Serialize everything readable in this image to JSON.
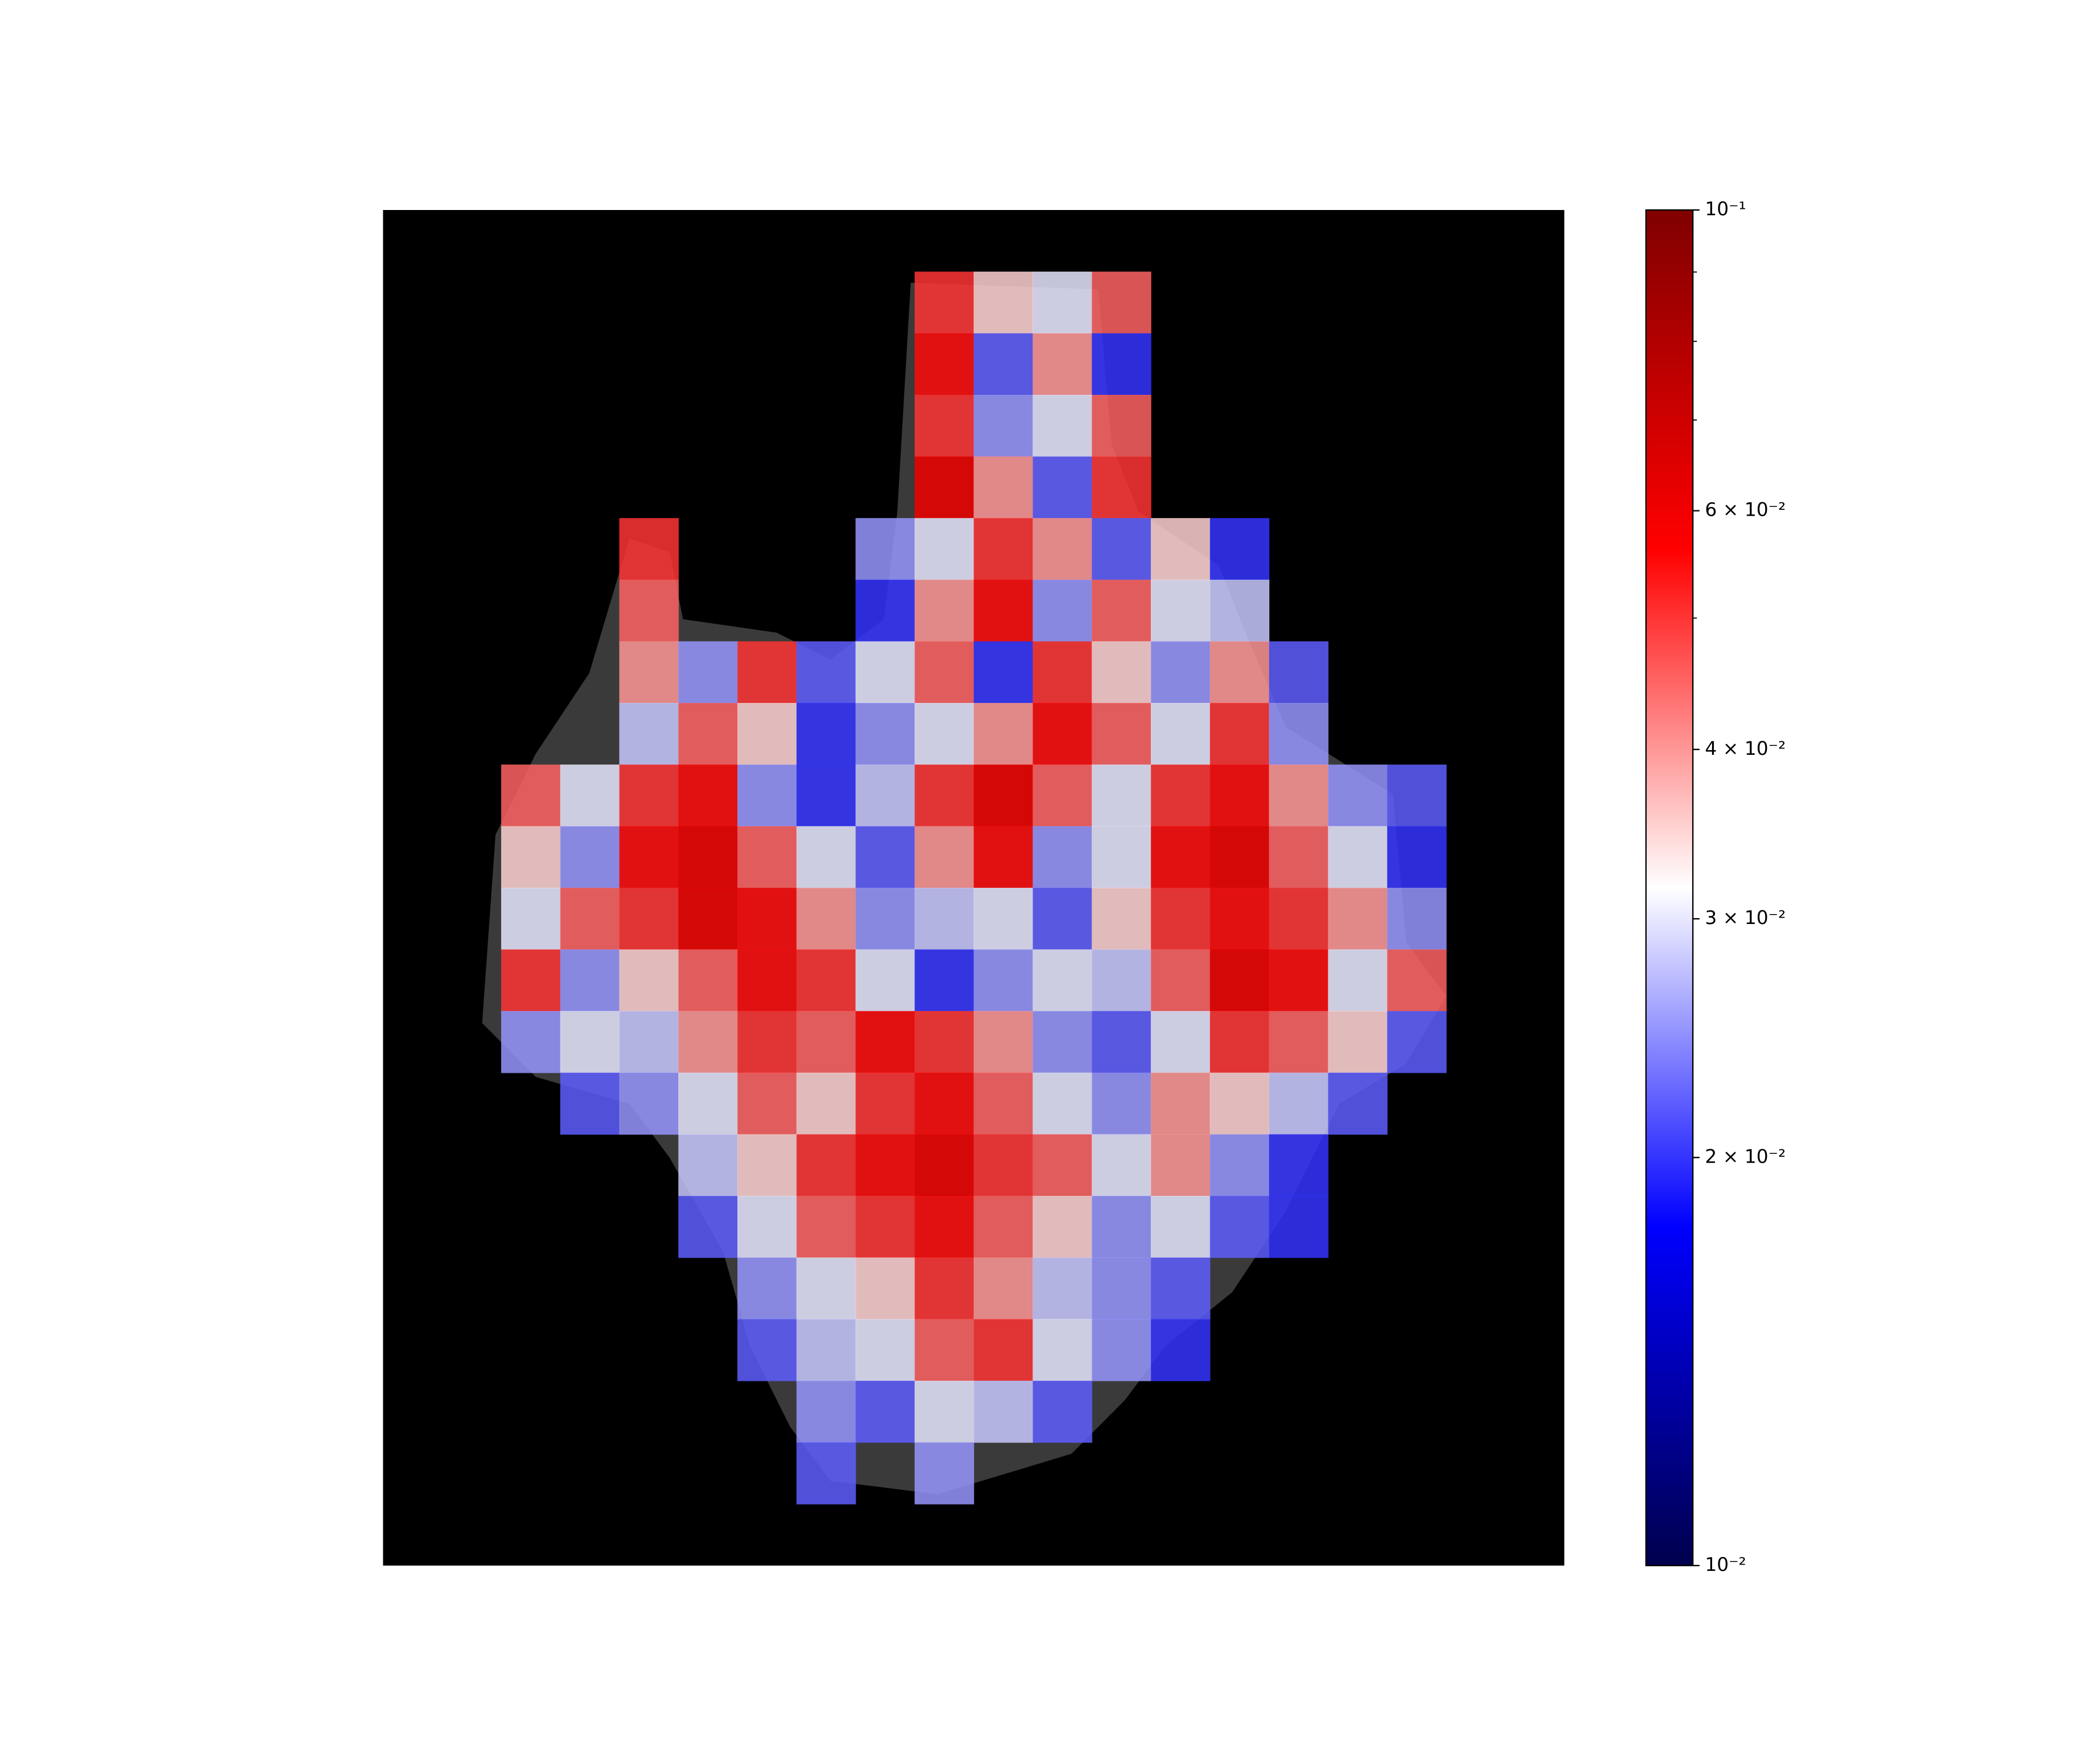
{
  "chart_data": {
    "type": "heatmap",
    "colormap": "seismic",
    "log_scale": true,
    "zlim": [
      0.01,
      0.1
    ],
    "zticks": [
      {
        "value": 0.1,
        "label": "10⁻¹"
      },
      {
        "value": 0.06,
        "label": "6 × 10⁻²"
      },
      {
        "value": 0.04,
        "label": "4 × 10⁻²"
      },
      {
        "value": 0.03,
        "label": "3 × 10⁻²"
      },
      {
        "value": 0.02,
        "label": "2 × 10⁻²"
      },
      {
        "value": 0.01,
        "label": "10⁻²"
      }
    ],
    "zminor_ticks": [
      0.05,
      0.07,
      0.08,
      0.09
    ],
    "values": [
      [
        null,
        null,
        null,
        null,
        null,
        null,
        null,
        null,
        null,
        null,
        null,
        null,
        null,
        null,
        null,
        null,
        null,
        null,
        null,
        null
      ],
      [
        null,
        null,
        null,
        null,
        null,
        null,
        null,
        null,
        null,
        0.05,
        0.035,
        0.03,
        0.045,
        null,
        null,
        null,
        null,
        null,
        null,
        null
      ],
      [
        null,
        null,
        null,
        null,
        null,
        null,
        null,
        null,
        null,
        0.055,
        0.022,
        0.04,
        0.02,
        null,
        null,
        null,
        null,
        null,
        null,
        null
      ],
      [
        null,
        null,
        null,
        null,
        null,
        null,
        null,
        null,
        null,
        0.05,
        0.025,
        0.03,
        0.045,
        null,
        null,
        null,
        null,
        null,
        null,
        null
      ],
      [
        null,
        null,
        null,
        null,
        null,
        null,
        null,
        null,
        null,
        0.06,
        0.04,
        0.022,
        0.05,
        null,
        null,
        null,
        null,
        null,
        null,
        null
      ],
      [
        null,
        null,
        null,
        null,
        0.05,
        null,
        null,
        null,
        0.025,
        0.03,
        0.05,
        0.04,
        0.022,
        0.035,
        0.02,
        null,
        null,
        null,
        null,
        null
      ],
      [
        null,
        null,
        null,
        null,
        0.045,
        null,
        null,
        null,
        0.02,
        0.04,
        0.055,
        0.025,
        0.045,
        0.03,
        0.028,
        null,
        null,
        null,
        null,
        null
      ],
      [
        null,
        null,
        null,
        null,
        0.04,
        0.025,
        0.05,
        0.022,
        0.03,
        0.045,
        0.02,
        0.05,
        0.035,
        0.025,
        0.04,
        0.022,
        null,
        null,
        null,
        null
      ],
      [
        null,
        null,
        null,
        null,
        0.028,
        0.045,
        0.035,
        0.02,
        0.025,
        0.03,
        0.04,
        0.055,
        0.045,
        0.03,
        0.05,
        0.025,
        null,
        null,
        null,
        null
      ],
      [
        null,
        null,
        0.045,
        0.03,
        0.05,
        0.055,
        0.025,
        0.02,
        0.028,
        0.05,
        0.06,
        0.045,
        0.03,
        0.05,
        0.055,
        0.04,
        0.025,
        0.022,
        null,
        null
      ],
      [
        null,
        null,
        0.035,
        0.025,
        0.055,
        0.06,
        0.045,
        0.03,
        0.022,
        0.04,
        0.055,
        0.025,
        0.03,
        0.055,
        0.06,
        0.045,
        0.03,
        0.02,
        null,
        null
      ],
      [
        null,
        null,
        0.03,
        0.045,
        0.05,
        0.06,
        0.055,
        0.04,
        0.025,
        0.028,
        0.03,
        0.022,
        0.035,
        0.05,
        0.055,
        0.05,
        0.04,
        0.025,
        null,
        null
      ],
      [
        null,
        null,
        0.05,
        0.025,
        0.035,
        0.045,
        0.055,
        0.05,
        0.03,
        0.02,
        0.025,
        0.03,
        0.028,
        0.045,
        0.06,
        0.055,
        0.03,
        0.045,
        null,
        null
      ],
      [
        null,
        null,
        0.025,
        0.03,
        0.028,
        0.04,
        0.05,
        0.045,
        0.055,
        0.05,
        0.04,
        0.025,
        0.022,
        0.03,
        0.05,
        0.045,
        0.035,
        0.022,
        null,
        null
      ],
      [
        null,
        null,
        null,
        0.022,
        0.025,
        0.03,
        0.045,
        0.035,
        0.05,
        0.055,
        0.045,
        0.03,
        0.025,
        0.04,
        0.035,
        0.028,
        0.022,
        null,
        null,
        null
      ],
      [
        null,
        null,
        null,
        null,
        null,
        0.028,
        0.035,
        0.05,
        0.055,
        0.06,
        0.05,
        0.045,
        0.03,
        0.04,
        0.025,
        0.02,
        null,
        null,
        null,
        null
      ],
      [
        null,
        null,
        null,
        null,
        null,
        0.022,
        0.03,
        0.045,
        0.05,
        0.055,
        0.045,
        0.035,
        0.025,
        0.03,
        0.022,
        0.02,
        null,
        null,
        null,
        null
      ],
      [
        null,
        null,
        null,
        null,
        null,
        null,
        0.025,
        0.03,
        0.035,
        0.05,
        0.04,
        0.028,
        0.025,
        0.022,
        null,
        null,
        null,
        null,
        null,
        null
      ],
      [
        null,
        null,
        null,
        null,
        null,
        null,
        0.022,
        0.028,
        0.03,
        0.045,
        0.05,
        0.03,
        0.025,
        0.02,
        null,
        null,
        null,
        null,
        null,
        null
      ],
      [
        null,
        null,
        null,
        null,
        null,
        null,
        null,
        0.025,
        0.022,
        0.03,
        0.028,
        0.022,
        null,
        null,
        null,
        null,
        null,
        null,
        null,
        null
      ],
      [
        null,
        null,
        null,
        null,
        null,
        null,
        null,
        0.022,
        null,
        0.025,
        null,
        null,
        null,
        null,
        null,
        null,
        null,
        null,
        null,
        null
      ],
      [
        null,
        null,
        null,
        null,
        null,
        null,
        null,
        null,
        null,
        null,
        null,
        null,
        null,
        null,
        null,
        null,
        null,
        null,
        null,
        null
      ]
    ]
  }
}
